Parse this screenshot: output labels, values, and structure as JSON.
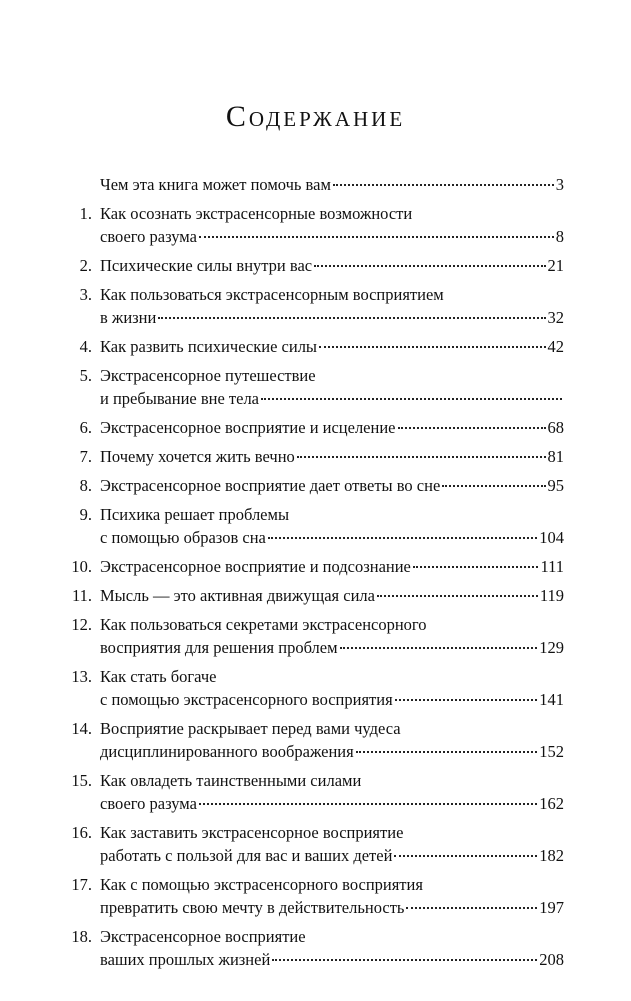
{
  "header": {
    "title": "Содержание"
  },
  "entries": [
    {
      "lines": [
        "Чем эта книга может помочь вам"
      ],
      "page": "3"
    },
    {
      "number": "1.",
      "lines": [
        "Как осознать экстрасенсорные возможности",
        "своего разума"
      ],
      "page": "8"
    },
    {
      "number": "2.",
      "lines": [
        "Психические силы внутри вас"
      ],
      "page": "21"
    },
    {
      "number": "3.",
      "lines": [
        "Как пользоваться экстрасенсорным восприятием",
        "в жизни"
      ],
      "page": "32"
    },
    {
      "number": "4.",
      "lines": [
        "Как развить психические силы"
      ],
      "page": "42"
    },
    {
      "number": "5.",
      "lines": [
        "Экстрасенсорное путешествие",
        "и пребывание вне тела"
      ]
    },
    {
      "number": "6.",
      "lines": [
        "Экстрасенсорное восприятие и исцеление"
      ],
      "page": "68"
    },
    {
      "number": "7.",
      "lines": [
        "Почему хочется жить вечно"
      ],
      "page": "81"
    },
    {
      "number": "8.",
      "lines": [
        "Экстрасенсорное восприятие дает ответы во сне"
      ],
      "page": "95"
    },
    {
      "number": "9.",
      "lines": [
        "Психика решает проблемы",
        "с помощью образов сна"
      ],
      "page": "104"
    },
    {
      "number": "10.",
      "lines": [
        "Экстрасенсорное восприятие и подсознание"
      ],
      "page": "111"
    },
    {
      "number": "11.",
      "lines": [
        "Мысль — это активная движущая сила"
      ],
      "page": "119"
    },
    {
      "number": "12.",
      "lines": [
        "Как пользоваться секретами экстрасенсорного",
        "восприятия для решения проблем"
      ],
      "page": "129"
    },
    {
      "number": "13.",
      "lines": [
        "Как стать богаче",
        "с помощью экстрасенсорного восприятия"
      ],
      "page": "141"
    },
    {
      "number": "14.",
      "lines": [
        "Восприятие раскрывает перед вами чудеса",
        "дисциплинированного воображения"
      ],
      "page": "152"
    },
    {
      "number": "15.",
      "lines": [
        "Как овладеть таинственными силами",
        "своего разума"
      ],
      "page": "162"
    },
    {
      "number": "16.",
      "lines": [
        "Как заставить экстрасенсорное восприятие",
        "работать с пользой для вас и ваших детей"
      ],
      "page": "182"
    },
    {
      "number": "17.",
      "lines": [
        "Как с помощью экстрасенсорного восприятия",
        "превратить свою мечту в действительность"
      ],
      "page": "197"
    },
    {
      "number": "18.",
      "lines": [
        "Экстрасенсорное восприятие",
        "ваших прошлых жизней"
      ],
      "page": "208"
    }
  ]
}
